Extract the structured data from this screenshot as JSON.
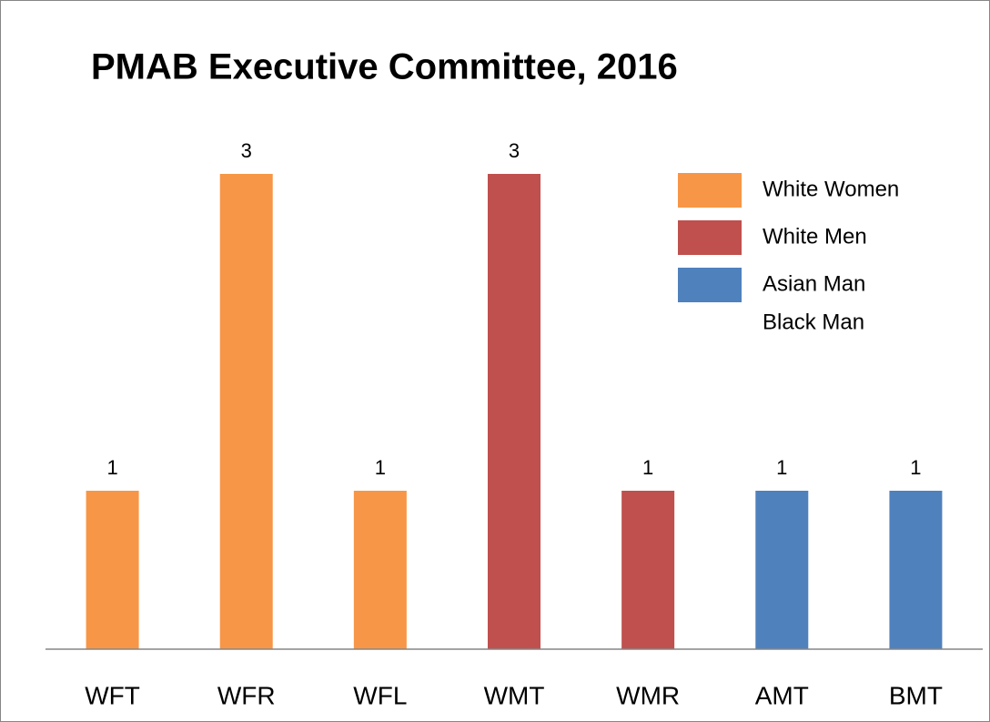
{
  "chart_data": {
    "type": "bar",
    "title": "PMAB Executive Committee, 2016",
    "categories": [
      "WFT",
      "WFR",
      "WFL",
      "WMT",
      "WMR",
      "AMT",
      "BMT"
    ],
    "values": [
      1,
      3,
      1,
      3,
      1,
      1,
      1
    ],
    "colors": [
      "#f79646",
      "#f79646",
      "#f79646",
      "#c0504d",
      "#c0504d",
      "#4f81bd",
      "#4f81bd"
    ],
    "ylim": [
      0,
      3.5
    ],
    "legend": [
      {
        "names": [
          "White Women"
        ],
        "color": "#f79646"
      },
      {
        "names": [
          "White Men"
        ],
        "color": "#c0504d"
      },
      {
        "names": [
          "Asian Man",
          "Black Man"
        ],
        "color": "#4f81bd"
      }
    ]
  }
}
